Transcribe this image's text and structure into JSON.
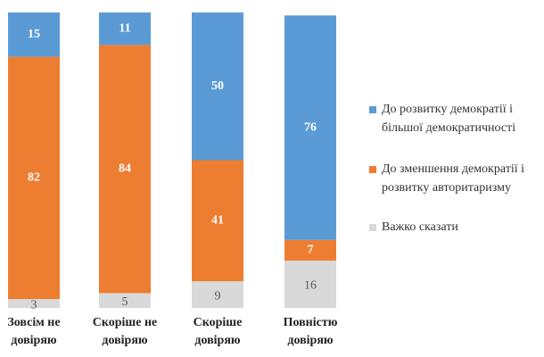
{
  "chart_data": {
    "type": "stacked-bar",
    "categories": [
      "Зовсім не довіряю",
      "Скоріше не довіряю",
      "Скоріше довіряю",
      "Повністю довіряю"
    ],
    "series": [
      {
        "name": "До розвитку демократії і більшої демократичності",
        "color": "#5b9bd5",
        "values": [
          15,
          11,
          50,
          76
        ]
      },
      {
        "name": "До зменшення демократії і розвитку авторитаризму",
        "color": "#ed7d31",
        "values": [
          82,
          84,
          41,
          7
        ]
      },
      {
        "name": "Важко сказати",
        "color": "#d9d9d9",
        "values": [
          3,
          5,
          9,
          16
        ]
      }
    ],
    "ylim": [
      0,
      100
    ]
  }
}
